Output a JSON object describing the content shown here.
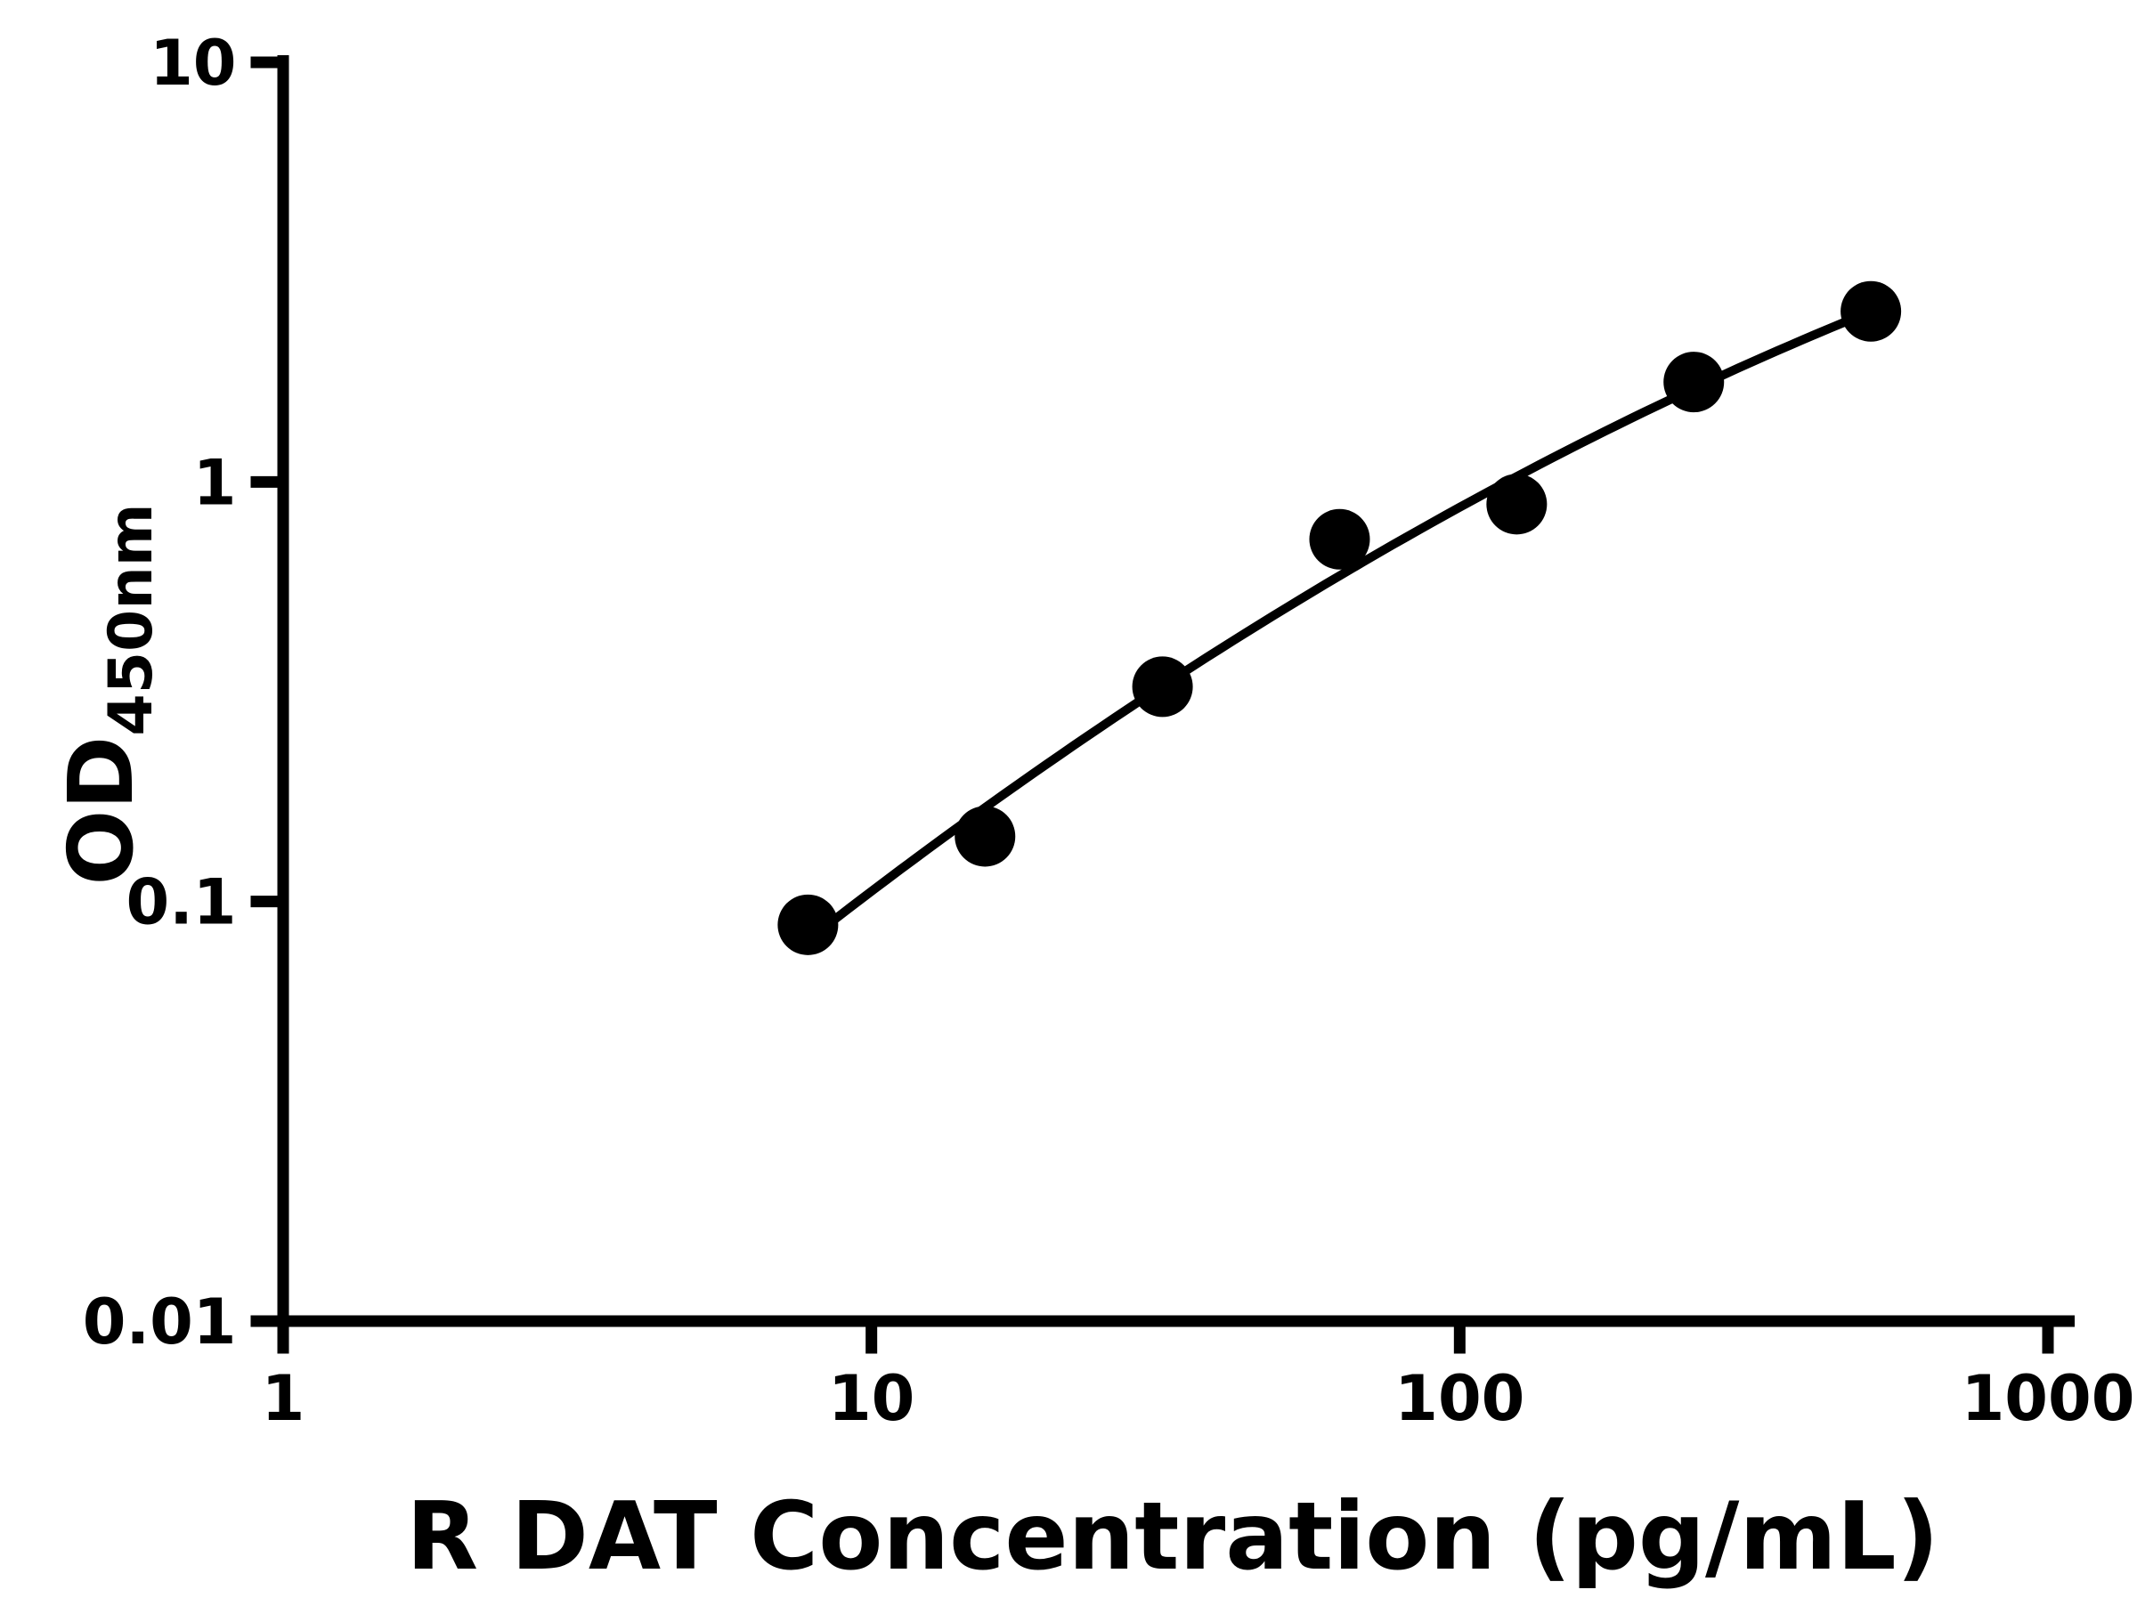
{
  "chart_data": {
    "type": "scatter",
    "title": "",
    "xlabel": "R DAT Concentration (pg/mL)",
    "ylabel_main": "OD",
    "ylabel_sub": "450nm",
    "x_scale": "log",
    "y_scale": "log",
    "xlim": [
      1,
      1000
    ],
    "ylim": [
      0.01,
      10
    ],
    "grid": false,
    "legend": "none",
    "x_ticks": [
      {
        "value": 1,
        "label": "1"
      },
      {
        "value": 10,
        "label": "10"
      },
      {
        "value": 100,
        "label": "100"
      },
      {
        "value": 1000,
        "label": "1000"
      }
    ],
    "y_ticks": [
      {
        "value": 0.01,
        "label": "0.01"
      },
      {
        "value": 0.1,
        "label": "0.1"
      },
      {
        "value": 1,
        "label": "1"
      },
      {
        "value": 10,
        "label": "10"
      }
    ],
    "points": [
      {
        "x": 7.8,
        "y": 0.088
      },
      {
        "x": 15.6,
        "y": 0.143
      },
      {
        "x": 31.25,
        "y": 0.325
      },
      {
        "x": 62.5,
        "y": 0.73
      },
      {
        "x": 125,
        "y": 0.885
      },
      {
        "x": 250,
        "y": 1.73
      },
      {
        "x": 500,
        "y": 2.55
      }
    ],
    "fit_curve": {
      "type": "quadratic-loglog",
      "center": 1.796,
      "a": -0.2235,
      "b": 0.829,
      "c": -0.1457,
      "x_range": [
        7.8,
        500
      ]
    },
    "style": {
      "color": "#000000",
      "background": "#ffffff",
      "marker_radius": 34,
      "curve_width": 10,
      "axis_width": 13,
      "tick_length": 30,
      "tick_label_size": 70,
      "xlabel_size": 105,
      "ylabel_main_size": 100,
      "ylabel_sub_size": 68
    }
  }
}
